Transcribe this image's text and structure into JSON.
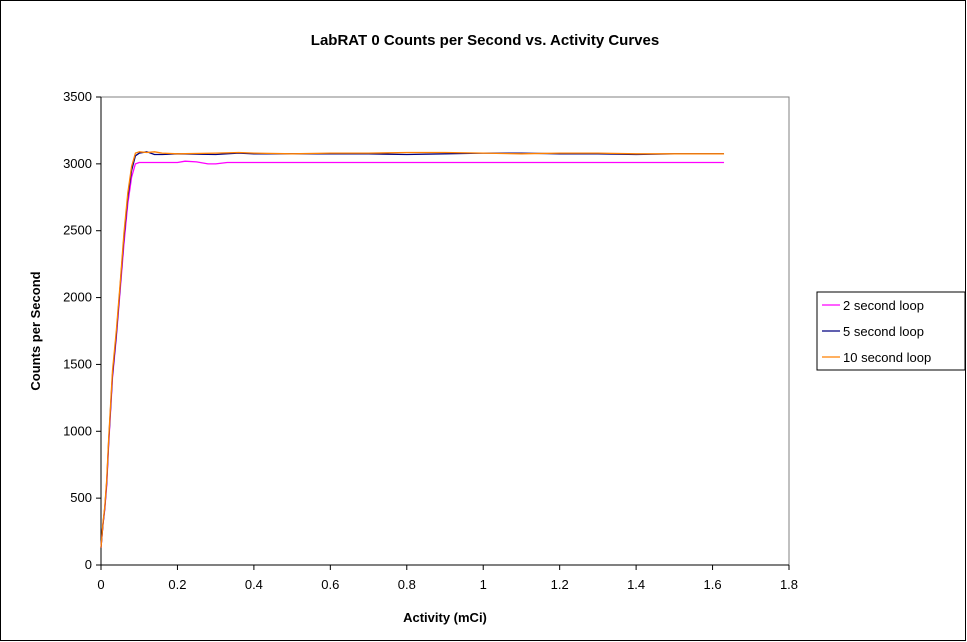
{
  "chart_data": {
    "type": "line",
    "title": "LabRAT 0 Counts per Second vs. Activity Curves",
    "xlabel": "Activity (mCi)",
    "ylabel": "Counts per Second",
    "xlim": [
      0,
      1.8
    ],
    "ylim": [
      0,
      3500
    ],
    "xticks": [
      0,
      0.2,
      0.4,
      0.6,
      0.8,
      1,
      1.2,
      1.4,
      1.6,
      1.8
    ],
    "yticks": [
      0,
      500,
      1000,
      1500,
      2000,
      2500,
      3000,
      3500
    ],
    "grid": false,
    "legend_position": "right",
    "series": [
      {
        "name": "2 second loop",
        "color": "#ff00ff",
        "x": [
          0,
          0.005,
          0.01,
          0.015,
          0.02,
          0.03,
          0.04,
          0.05,
          0.06,
          0.07,
          0.08,
          0.09,
          0.1,
          0.12,
          0.15,
          0.2,
          0.22,
          0.25,
          0.28,
          0.3,
          0.33,
          0.4,
          0.6,
          0.8,
          1.0,
          1.2,
          1.4,
          1.63
        ],
        "y": [
          130,
          300,
          420,
          600,
          900,
          1400,
          1700,
          2050,
          2400,
          2700,
          2900,
          3000,
          3010,
          3010,
          3010,
          3010,
          3020,
          3015,
          3000,
          3000,
          3010,
          3010,
          3010,
          3010,
          3010,
          3010,
          3010,
          3010
        ]
      },
      {
        "name": "5 second loop",
        "color": "#000080",
        "x": [
          0,
          0.005,
          0.01,
          0.015,
          0.02,
          0.03,
          0.04,
          0.05,
          0.06,
          0.07,
          0.08,
          0.09,
          0.1,
          0.12,
          0.14,
          0.16,
          0.2,
          0.3,
          0.36,
          0.4,
          0.5,
          0.6,
          0.7,
          0.8,
          0.9,
          1.0,
          1.1,
          1.2,
          1.3,
          1.4,
          1.5,
          1.63
        ],
        "y": [
          130,
          300,
          430,
          620,
          920,
          1420,
          1720,
          2080,
          2450,
          2750,
          2950,
          3060,
          3080,
          3090,
          3070,
          3070,
          3075,
          3070,
          3080,
          3075,
          3075,
          3075,
          3075,
          3070,
          3075,
          3080,
          3080,
          3075,
          3075,
          3070,
          3075,
          3075
        ]
      },
      {
        "name": "10 second loop",
        "color": "#ff8000",
        "x": [
          0,
          0.005,
          0.01,
          0.015,
          0.02,
          0.03,
          0.04,
          0.05,
          0.06,
          0.07,
          0.08,
          0.09,
          0.1,
          0.12,
          0.14,
          0.16,
          0.2,
          0.3,
          0.36,
          0.4,
          0.5,
          0.6,
          0.7,
          0.8,
          0.9,
          1.0,
          1.1,
          1.2,
          1.3,
          1.4,
          1.5,
          1.63
        ],
        "y": [
          130,
          310,
          440,
          640,
          940,
          1450,
          1750,
          2100,
          2480,
          2780,
          2980,
          3080,
          3090,
          3085,
          3090,
          3080,
          3075,
          3080,
          3085,
          3080,
          3075,
          3080,
          3080,
          3085,
          3085,
          3080,
          3075,
          3080,
          3080,
          3075,
          3075,
          3075
        ]
      }
    ]
  }
}
